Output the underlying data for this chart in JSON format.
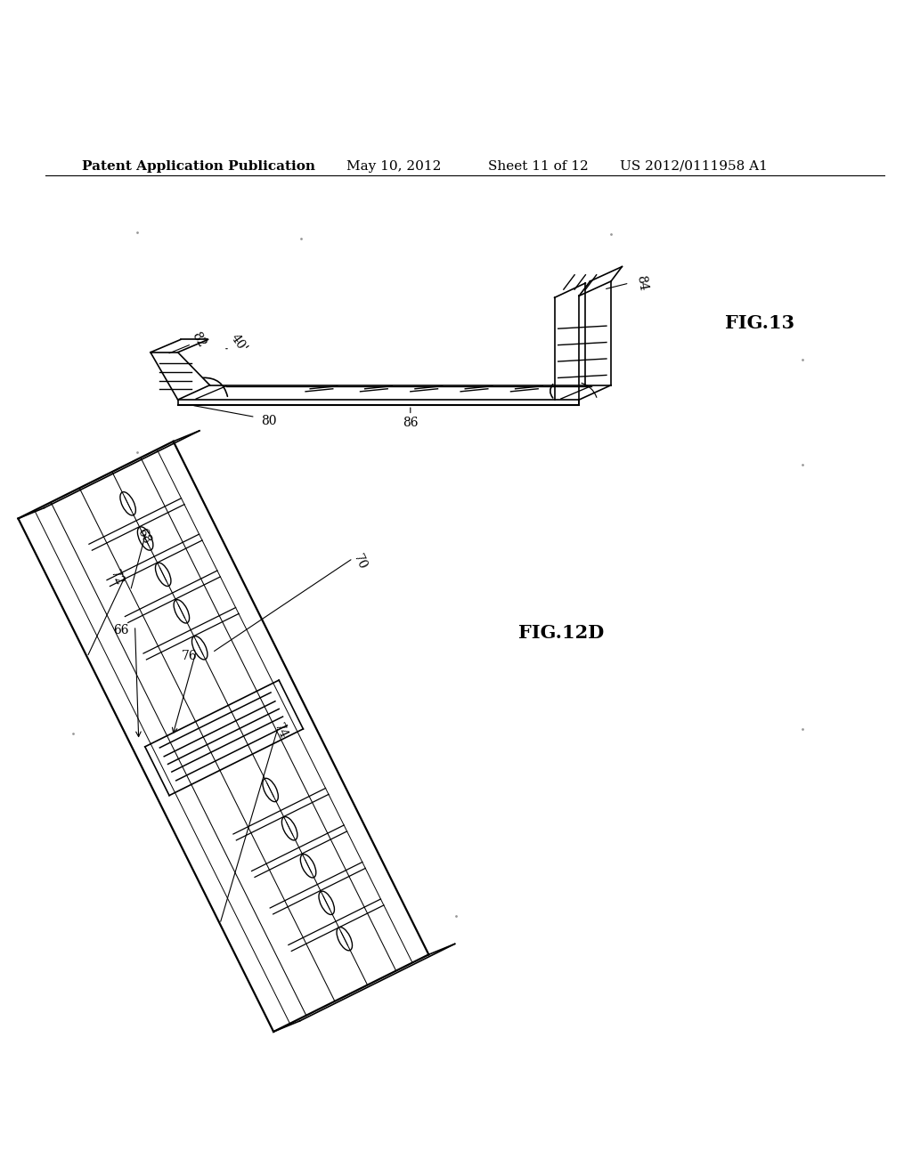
{
  "background_color": "#ffffff",
  "header_text": "Patent Application Publication",
  "header_date": "May 10, 2012",
  "header_sheet": "Sheet 11 of 12",
  "header_patent": "US 2012/0111958 A1",
  "header_fontsize": 11,
  "fig13_label": "FIG.13",
  "fig12d_label": "FIG.12D",
  "text_color": "#000000",
  "line_color": "#000000",
  "line_width": 1.2
}
